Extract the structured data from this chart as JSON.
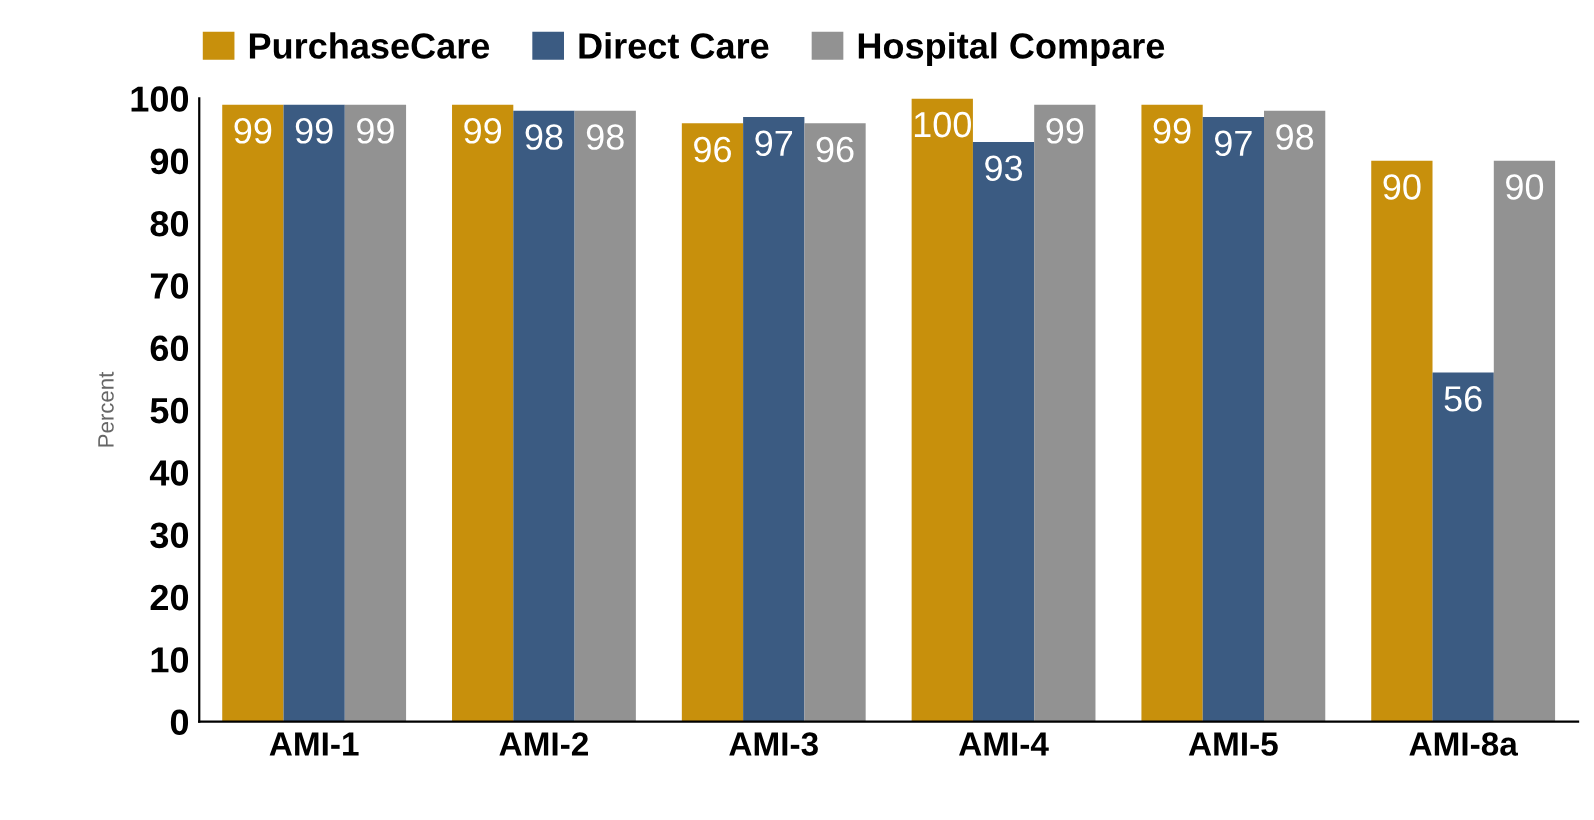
{
  "chart_data": {
    "type": "bar",
    "ylabel": "Percent",
    "categories": [
      "AMI-1",
      "AMI-2",
      "AMI-3",
      "AMI-4",
      "AMI-5",
      "AMI-8a"
    ],
    "series": [
      {
        "name": "PurchaseCare",
        "color": "#c8900c",
        "values": [
          99,
          99,
          96,
          100,
          99,
          90
        ]
      },
      {
        "name": "Direct Care",
        "color": "#3b5b82",
        "values": [
          99,
          98,
          97,
          93,
          97,
          56
        ]
      },
      {
        "name": "Hospital Compare",
        "color": "#929292",
        "values": [
          99,
          98,
          96,
          99,
          98,
          90
        ]
      }
    ],
    "ylim": [
      0,
      100
    ],
    "yticks": [
      0,
      10,
      20,
      30,
      40,
      50,
      60,
      70,
      80,
      90,
      100
    ],
    "data_labels": true,
    "legend": "top",
    "grid": false
  }
}
